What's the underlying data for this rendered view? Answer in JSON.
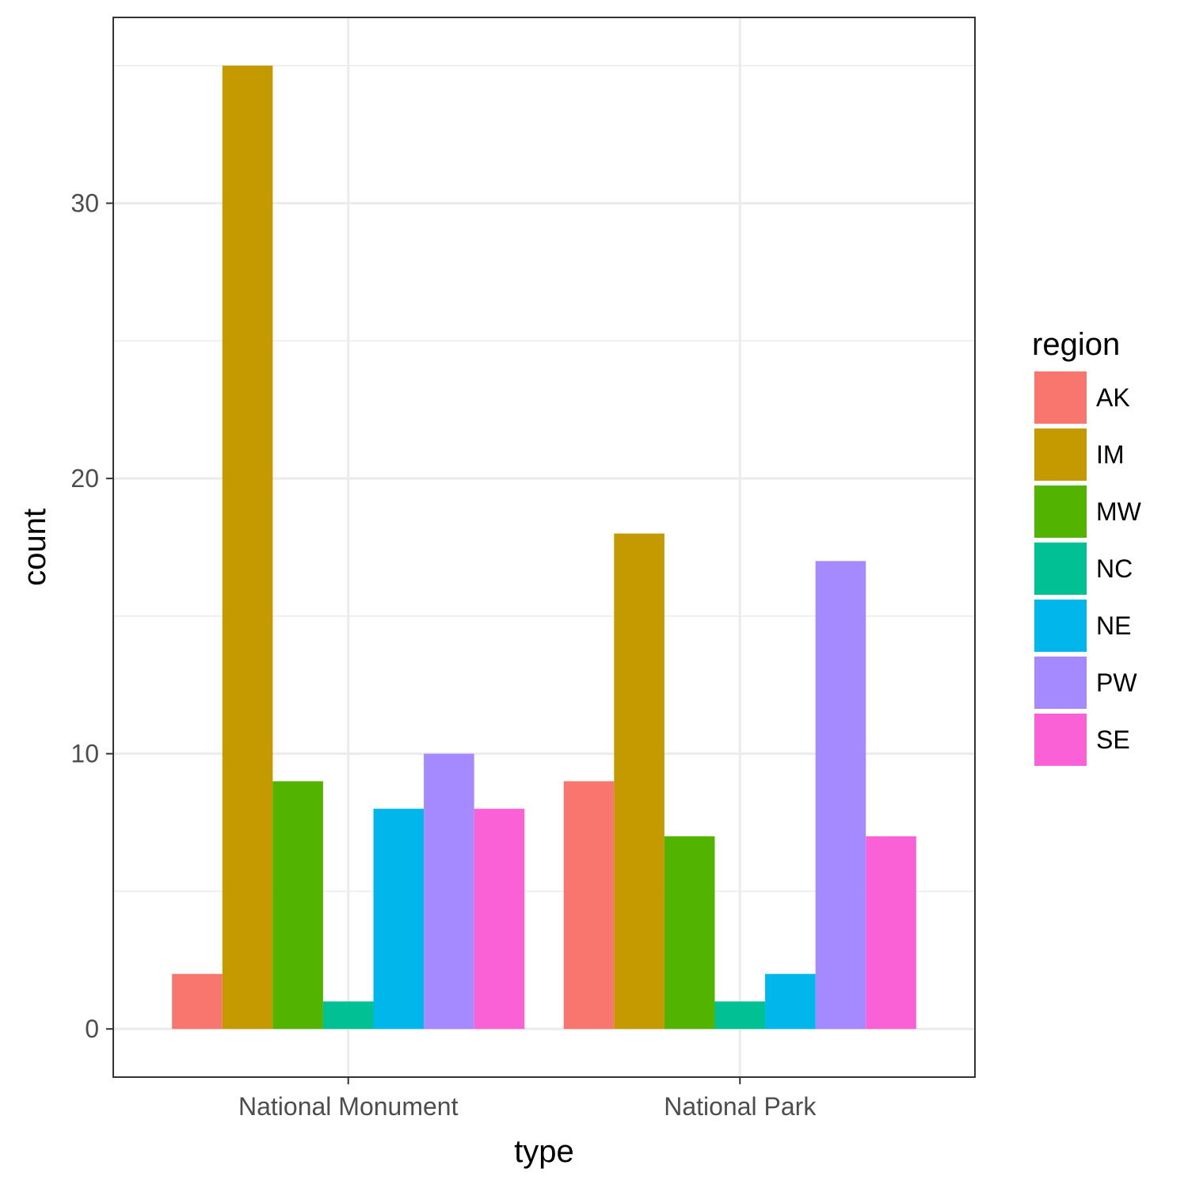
{
  "chart_data": {
    "type": "bar",
    "categories": [
      "National Monument",
      "National Park"
    ],
    "series": [
      {
        "name": "AK",
        "color": "#F8766D",
        "values": [
          2,
          9
        ]
      },
      {
        "name": "IM",
        "color": "#C49A00",
        "values": [
          35,
          18
        ]
      },
      {
        "name": "MW",
        "color": "#53B400",
        "values": [
          9,
          7
        ]
      },
      {
        "name": "NC",
        "color": "#00C094",
        "values": [
          1,
          1
        ]
      },
      {
        "name": "NE",
        "color": "#00B6EB",
        "values": [
          8,
          2
        ]
      },
      {
        "name": "PW",
        "color": "#A58AFF",
        "values": [
          10,
          17
        ]
      },
      {
        "name": "SE",
        "color": "#FB61D7",
        "values": [
          8,
          7
        ]
      }
    ],
    "xlabel": "type",
    "ylabel": "count",
    "yticks": [
      0,
      10,
      20,
      30
    ],
    "ylim": [
      -1.75,
      36.75
    ],
    "legend": {
      "title": "region",
      "position": "right"
    },
    "grid": true
  }
}
